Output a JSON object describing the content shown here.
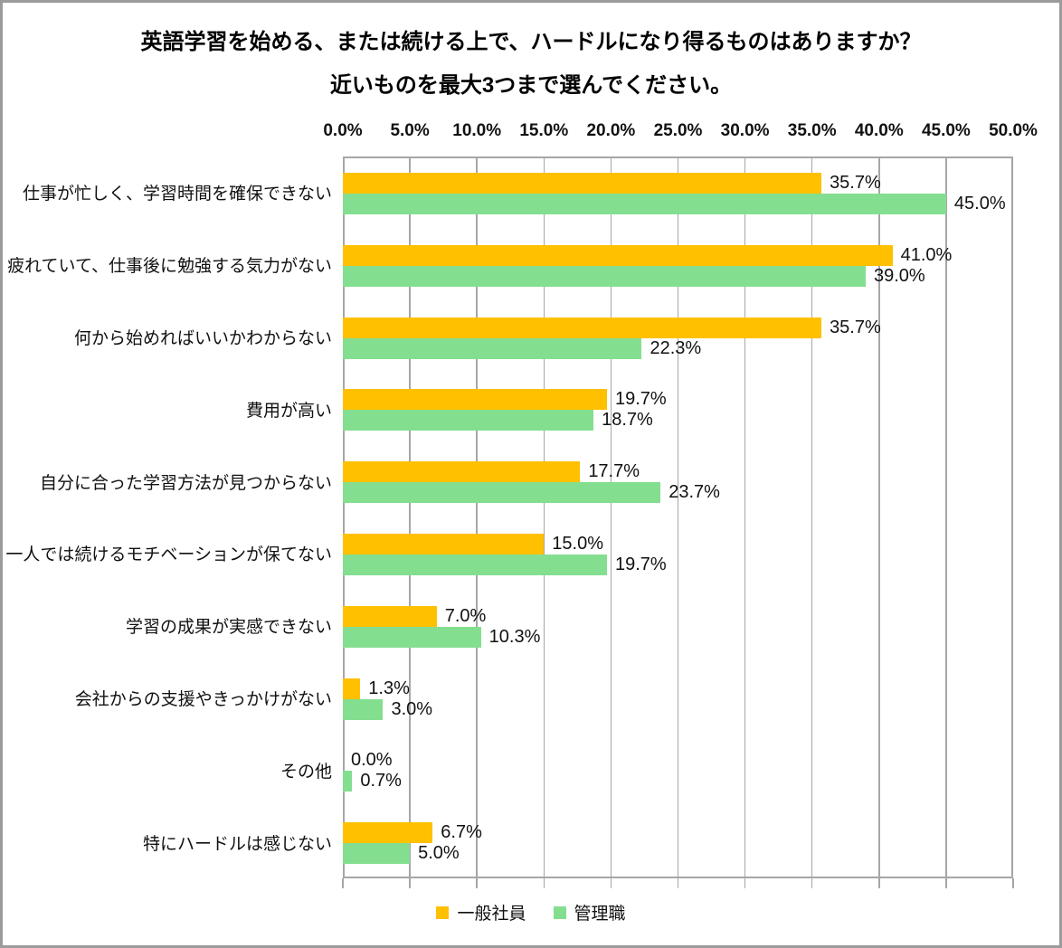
{
  "title": {
    "line1": "英語学習を始める、または続ける上で、ハードルになり得るものはありますか？",
    "line2": "近いものを最大3つまで選んでください。"
  },
  "chart_data": {
    "type": "bar",
    "orientation": "horizontal",
    "title": "英語学習を始める、または続ける上で、ハードルになり得るものはありますか？ 近いものを最大3つまで選んでください。",
    "categories": [
      "仕事が忙しく、学習時間を確保できない",
      "疲れていて、仕事後に勉強する気力がない",
      "何から始めればいいかわからない",
      "費用が高い",
      "自分に合った学習方法が見つからない",
      "一人では続けるモチベーションが保てない",
      "学習の成果が実感できない",
      "会社からの支援やきっかけがない",
      "その他",
      "特にハードルは感じない"
    ],
    "series": [
      {
        "name": "一般社員",
        "color": "#FFC000",
        "values": [
          35.7,
          41.0,
          35.7,
          19.7,
          17.7,
          15.0,
          7.0,
          1.3,
          0.0,
          6.7
        ],
        "labels": [
          "35.7%",
          "41.0%",
          "35.7%",
          "19.7%",
          "17.7%",
          "15.0%",
          "7.0%",
          "1.3%",
          "0.0%",
          "6.7%"
        ]
      },
      {
        "name": "管理職",
        "color": "#84DE8F",
        "values": [
          45.0,
          39.0,
          22.3,
          18.7,
          23.7,
          19.7,
          10.3,
          3.0,
          0.7,
          5.0
        ],
        "labels": [
          "45.0%",
          "39.0%",
          "22.3%",
          "18.7%",
          "23.7%",
          "19.7%",
          "10.3%",
          "3.0%",
          "0.7%",
          "5.0%"
        ]
      }
    ],
    "xlim": [
      0,
      50
    ],
    "x_ticks": [
      "0.0%",
      "5.0%",
      "10.0%",
      "15.0%",
      "20.0%",
      "25.0%",
      "30.0%",
      "35.0%",
      "40.0%",
      "45.0%",
      "50.0%"
    ],
    "grid": true,
    "legend_position": "bottom",
    "xlabel": "",
    "ylabel": ""
  },
  "colors": {
    "series_general": "#FFC000",
    "series_manager": "#84DE8F",
    "gridline": "#A6A6A6",
    "plot_border": "#A6A6A6",
    "frame_border": "#9B9B9B",
    "text": "#111111",
    "background": "#FFFFFF"
  }
}
